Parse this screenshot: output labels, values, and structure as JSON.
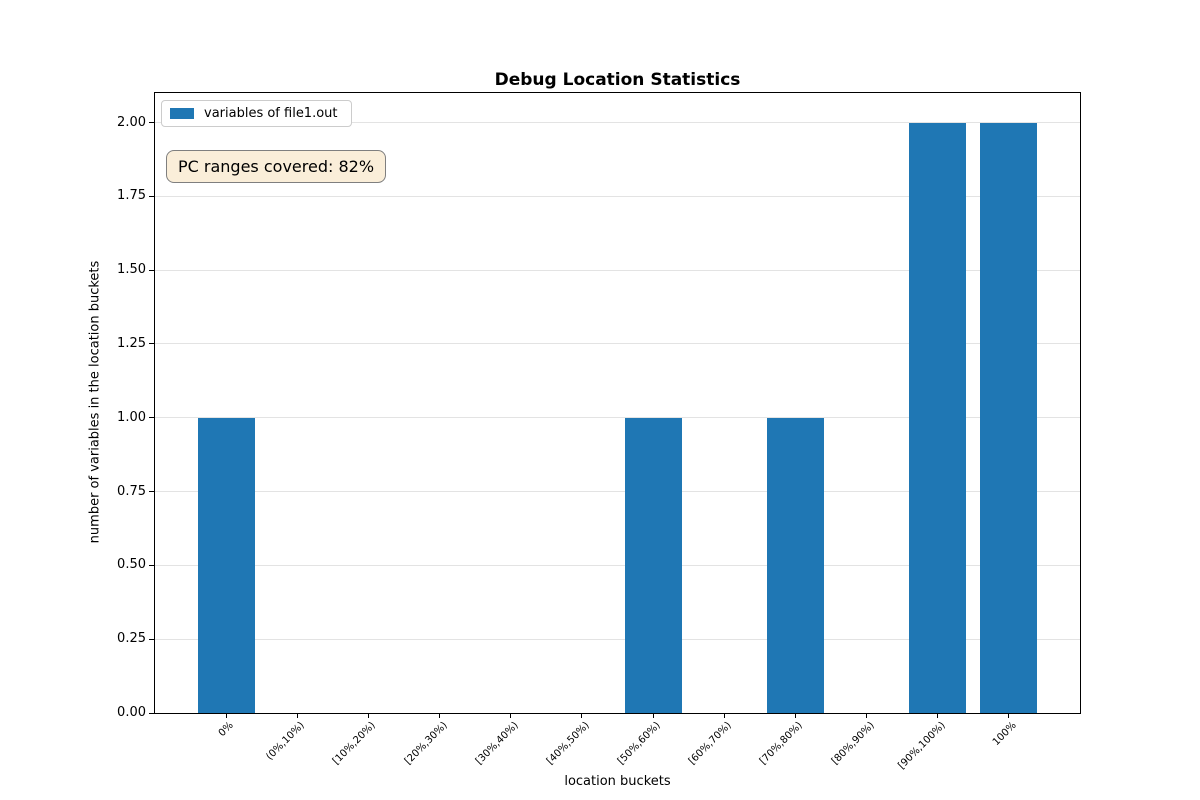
{
  "chart_data": {
    "type": "bar",
    "title": "Debug Location Statistics",
    "xlabel": "location buckets",
    "ylabel": "number of variables in the location buckets",
    "categories": [
      "0%",
      "(0%,10%)",
      "[10%,20%)",
      "[20%,30%)",
      "[30%,40%)",
      "[40%,50%)",
      "[50%,60%)",
      "[60%,70%)",
      "[70%,80%)",
      "[80%,90%)",
      "[90%,100%)",
      "100%"
    ],
    "values": [
      1,
      0,
      0,
      0,
      0,
      0,
      1,
      0,
      1,
      0,
      2,
      2
    ],
    "bar_color": "#1f77b4",
    "bar_width_ratio": 0.8,
    "ylim": [
      0,
      2.1
    ],
    "yticks": [
      0,
      0.25,
      0.5,
      0.75,
      1,
      1.25,
      1.5,
      1.75,
      2
    ],
    "ytick_labels": [
      "0.00",
      "0.25",
      "0.50",
      "0.75",
      "1.00",
      "1.25",
      "1.50",
      "1.75",
      "2.00"
    ],
    "xtick_rotation": 45,
    "grid": "horizontal",
    "grid_color": "#e3e3e3",
    "legend": {
      "position": "upper-left",
      "entries": [
        {
          "label": "variables of file1.out",
          "color": "#1f77b4"
        }
      ]
    },
    "annotation": {
      "text": "PC ranges covered: 82%",
      "bg_color": "#faeed9",
      "border_color": "#7f7f7f"
    }
  }
}
